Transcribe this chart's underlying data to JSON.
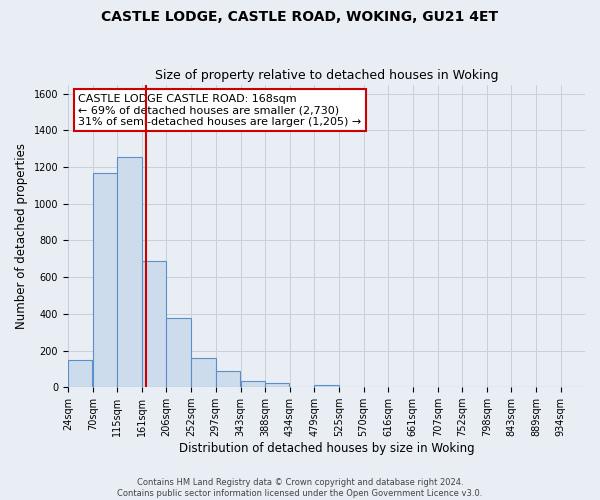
{
  "title": "CASTLE LODGE, CASTLE ROAD, WOKING, GU21 4ET",
  "subtitle": "Size of property relative to detached houses in Woking",
  "xlabel": "Distribution of detached houses by size in Woking",
  "ylabel": "Number of detached properties",
  "bin_labels": [
    "24sqm",
    "70sqm",
    "115sqm",
    "161sqm",
    "206sqm",
    "252sqm",
    "297sqm",
    "343sqm",
    "388sqm",
    "434sqm",
    "479sqm",
    "525sqm",
    "570sqm",
    "616sqm",
    "661sqm",
    "707sqm",
    "752sqm",
    "798sqm",
    "843sqm",
    "889sqm",
    "934sqm"
  ],
  "bar_values": [
    150,
    1170,
    1255,
    690,
    375,
    160,
    90,
    35,
    22,
    0,
    12,
    0,
    0,
    0,
    0,
    0,
    0,
    0,
    0,
    0,
    0
  ],
  "bar_color": "#cddcec",
  "bar_edgecolor": "#5b8fc9",
  "property_line_x": 168,
  "bin_edges": [
    24,
    70,
    115,
    161,
    206,
    252,
    297,
    343,
    388,
    434,
    479,
    525,
    570,
    616,
    661,
    707,
    752,
    798,
    843,
    889,
    934
  ],
  "bin_width": 45,
  "ylim": [
    0,
    1650
  ],
  "yticks": [
    0,
    200,
    400,
    600,
    800,
    1000,
    1200,
    1400,
    1600
  ],
  "annotation_title": "CASTLE LODGE CASTLE ROAD: 168sqm",
  "annotation_line1": "← 69% of detached houses are smaller (2,730)",
  "annotation_line2": "31% of semi-detached houses are larger (1,205) →",
  "red_line_color": "#cc0000",
  "annotation_box_facecolor": "#ffffff",
  "annotation_box_edgecolor": "#cc0000",
  "footer_line1": "Contains HM Land Registry data © Crown copyright and database right 2024.",
  "footer_line2": "Contains public sector information licensed under the Open Government Licence v3.0.",
  "background_color": "#e8eef4",
  "plot_background_color": "#e8eef4",
  "grid_color": "#c8d0d8",
  "title_fontsize": 10,
  "subtitle_fontsize": 9,
  "tick_fontsize": 7,
  "ylabel_fontsize": 8.5,
  "xlabel_fontsize": 8.5,
  "footer_fontsize": 6,
  "annotation_fontsize": 8
}
